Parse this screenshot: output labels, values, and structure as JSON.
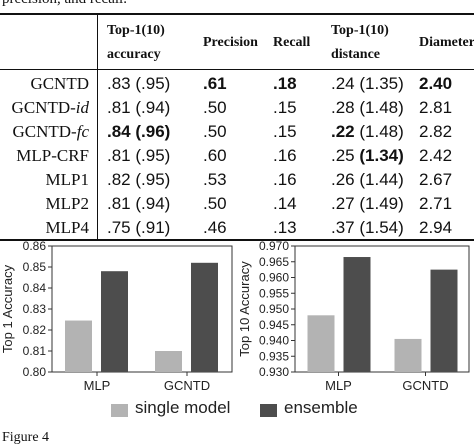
{
  "caption_top": "precision, and recall.",
  "caption_bottom_fragment": "Figure 4",
  "table": {
    "headers": {
      "method": "",
      "acc_line1": "Top-1(10)",
      "acc_line2": "accuracy",
      "precision": "Precision",
      "recall": "Recall",
      "dist_line1": "Top-1(10)",
      "dist_line2": "distance",
      "diameter": "Diameter"
    },
    "rows": [
      {
        "name": "GCNTD",
        "suffix": "",
        "acc": ".83",
        "acc10": "(.95)",
        "precision": ".61",
        "recall": ".18",
        "dist": ".24",
        "dist10": "(1.35)",
        "diameter": "2.40"
      },
      {
        "name": "GCNTD-",
        "suffix": "id",
        "acc": ".81",
        "acc10": "(.94)",
        "precision": ".50",
        "recall": ".15",
        "dist": ".28",
        "dist10": "(1.48)",
        "diameter": "2.81"
      },
      {
        "name": "GCNTD-",
        "suffix": "fc",
        "acc": ".84",
        "acc10": "(.96)",
        "precision": ".50",
        "recall": ".15",
        "dist": ".22",
        "dist10": "(1.48)",
        "diameter": "2.82"
      },
      {
        "name": "MLP-CRF",
        "suffix": "",
        "acc": ".81",
        "acc10": "(.95)",
        "precision": ".60",
        "recall": ".16",
        "dist": ".25",
        "dist10": "(1.34)",
        "diameter": "2.42"
      },
      {
        "name": "MLP1",
        "suffix": "",
        "acc": ".82",
        "acc10": "(.95)",
        "precision": ".53",
        "recall": ".16",
        "dist": ".26",
        "dist10": "(1.44)",
        "diameter": "2.67"
      },
      {
        "name": "MLP2",
        "suffix": "",
        "acc": ".81",
        "acc10": "(.94)",
        "precision": ".50",
        "recall": ".14",
        "dist": ".27",
        "dist10": "(1.49)",
        "diameter": "2.71"
      },
      {
        "name": "MLP4",
        "suffix": "",
        "acc": ".75",
        "acc10": "(.91)",
        "precision": ".46",
        "recall": ".13",
        "dist": ".37",
        "dist10": "(1.54)",
        "diameter": "2.94"
      }
    ]
  },
  "legend": {
    "single": "single model",
    "ensemble": "ensemble"
  },
  "colors": {
    "single": "#b3b3b3",
    "ensemble": "#4d4d4d"
  },
  "chart_data": [
    {
      "type": "bar",
      "ylabel": "Top 1 Accuracy",
      "categories": [
        "MLP",
        "GCNTD"
      ],
      "series": [
        {
          "name": "single model",
          "values": [
            0.8245,
            0.81
          ]
        },
        {
          "name": "ensemble",
          "values": [
            0.848,
            0.852
          ]
        }
      ],
      "ylim": [
        0.8,
        0.86
      ],
      "yticks": [
        "0.80",
        "0.81",
        "0.82",
        "0.83",
        "0.84",
        "0.85",
        "0.86"
      ],
      "grid": false
    },
    {
      "type": "bar",
      "ylabel": "Top 10 Accuracy",
      "categories": [
        "MLP",
        "GCNTD"
      ],
      "series": [
        {
          "name": "single model",
          "values": [
            0.948,
            0.9405
          ]
        },
        {
          "name": "ensemble",
          "values": [
            0.9665,
            0.9625
          ]
        }
      ],
      "ylim": [
        0.93,
        0.97
      ],
      "yticks": [
        "0.930",
        "0.935",
        "0.940",
        "0.945",
        "0.950",
        "0.955",
        "0.960",
        "0.965",
        "0.970"
      ],
      "grid": false
    }
  ]
}
